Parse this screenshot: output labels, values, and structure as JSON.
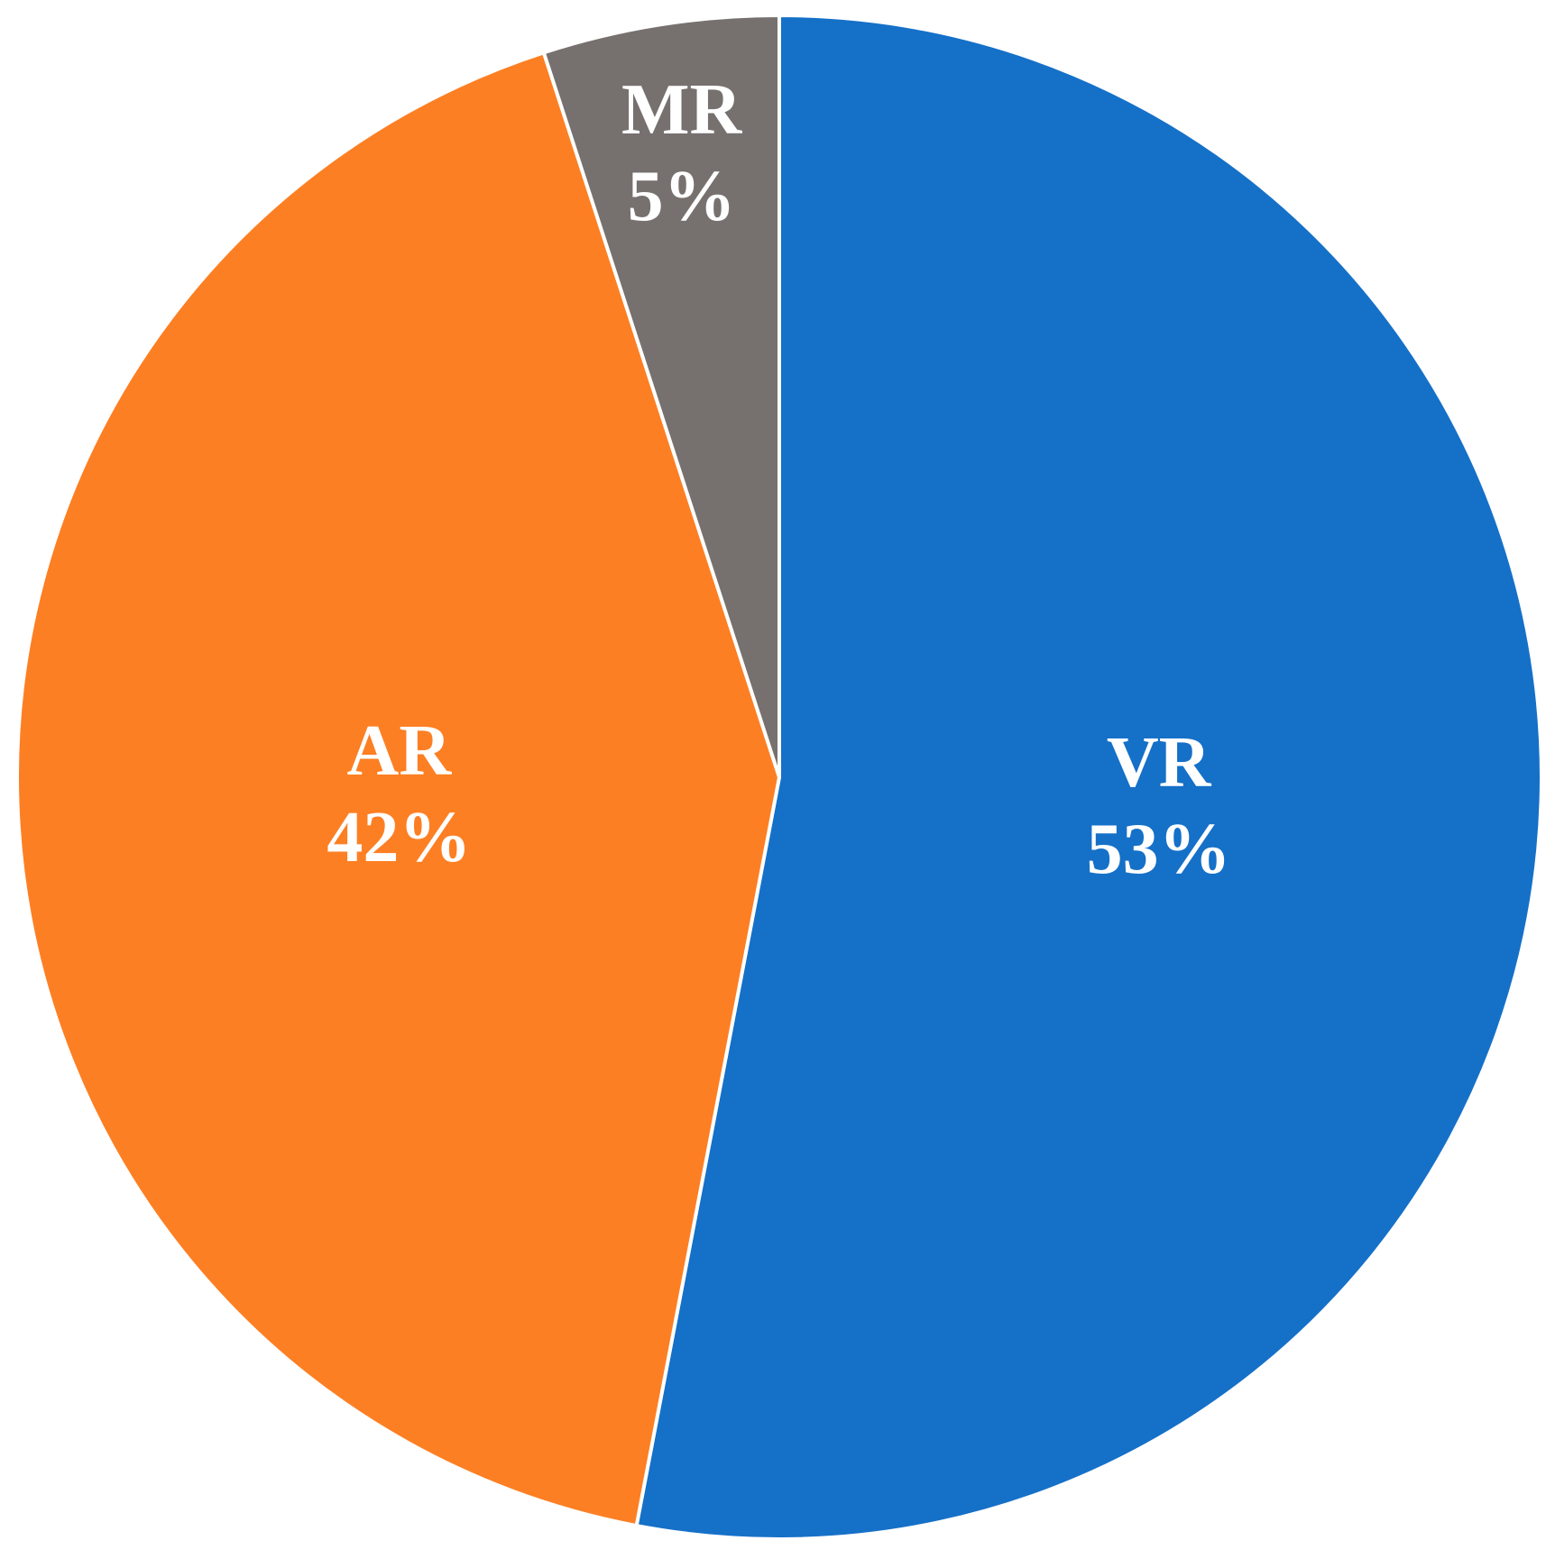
{
  "chart_data": {
    "type": "pie",
    "categories": [
      "VR",
      "AR",
      "MR"
    ],
    "values": [
      53,
      42,
      5
    ],
    "value_labels": [
      "53%",
      "42%",
      "5%"
    ],
    "colors": [
      "#1570c8",
      "#fd7f23",
      "#76716f"
    ]
  }
}
